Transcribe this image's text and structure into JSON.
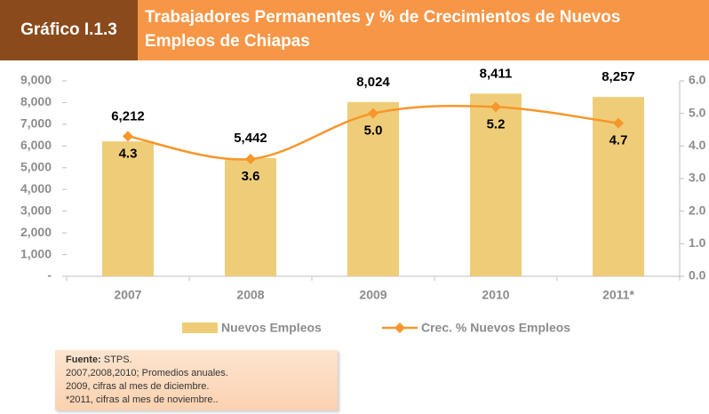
{
  "chart_id": "Gráfico I.1.3",
  "chart_data": {
    "type": "bar",
    "title": "Trabajadores Permanentes y % de Crecimientos de Nuevos Empleos de Chiapas",
    "categories": [
      "2007",
      "2008",
      "2009",
      "2010",
      "2011*"
    ],
    "series": [
      {
        "name": "Nuevos Empleos",
        "type": "bar",
        "color": "#efcd78",
        "values": [
          6212,
          5442,
          8024,
          8411,
          8257
        ],
        "value_labels": [
          "6,212",
          "5,442",
          "8,024",
          "8,411",
          "8,257"
        ]
      },
      {
        "name": "Crec. % Nuevos Empleos",
        "type": "line",
        "axis": "y2",
        "color": "#f7962b",
        "values": [
          4.3,
          3.6,
          5.0,
          5.2,
          4.7
        ],
        "value_labels": [
          "4.3",
          "3.6",
          "5.0",
          "5.2",
          "4.7"
        ]
      }
    ],
    "ylim": [
      0,
      9000
    ],
    "yticks": [
      {
        "value": 0,
        "label": "-"
      },
      {
        "value": 1000,
        "label": "1,000"
      },
      {
        "value": 2000,
        "label": "2,000"
      },
      {
        "value": 3000,
        "label": "3,000"
      },
      {
        "value": 4000,
        "label": "4,000"
      },
      {
        "value": 5000,
        "label": "5,000"
      },
      {
        "value": 6000,
        "label": "6,000"
      },
      {
        "value": 7000,
        "label": "7,000"
      },
      {
        "value": 8000,
        "label": "8,000"
      },
      {
        "value": 9000,
        "label": "9,000"
      }
    ],
    "y2lim": [
      0,
      6
    ],
    "y2ticks": [
      {
        "value": 0,
        "label": "0.0"
      },
      {
        "value": 1,
        "label": "1.0"
      },
      {
        "value": 2,
        "label": "2.0"
      },
      {
        "value": 3,
        "label": "3.0"
      },
      {
        "value": 4,
        "label": "4.0"
      },
      {
        "value": 5,
        "label": "5.0"
      },
      {
        "value": 6,
        "label": "6.0"
      }
    ],
    "grid": false,
    "legend": "bottom"
  },
  "note": {
    "source_label": "Fuente:",
    "source": "STPS.",
    "lines": [
      "2007,2008,2010;  Promedios anuales.",
      "2009, cifras al mes de diciembre.",
      "*2011, cifras al mes de noviembre.."
    ]
  }
}
